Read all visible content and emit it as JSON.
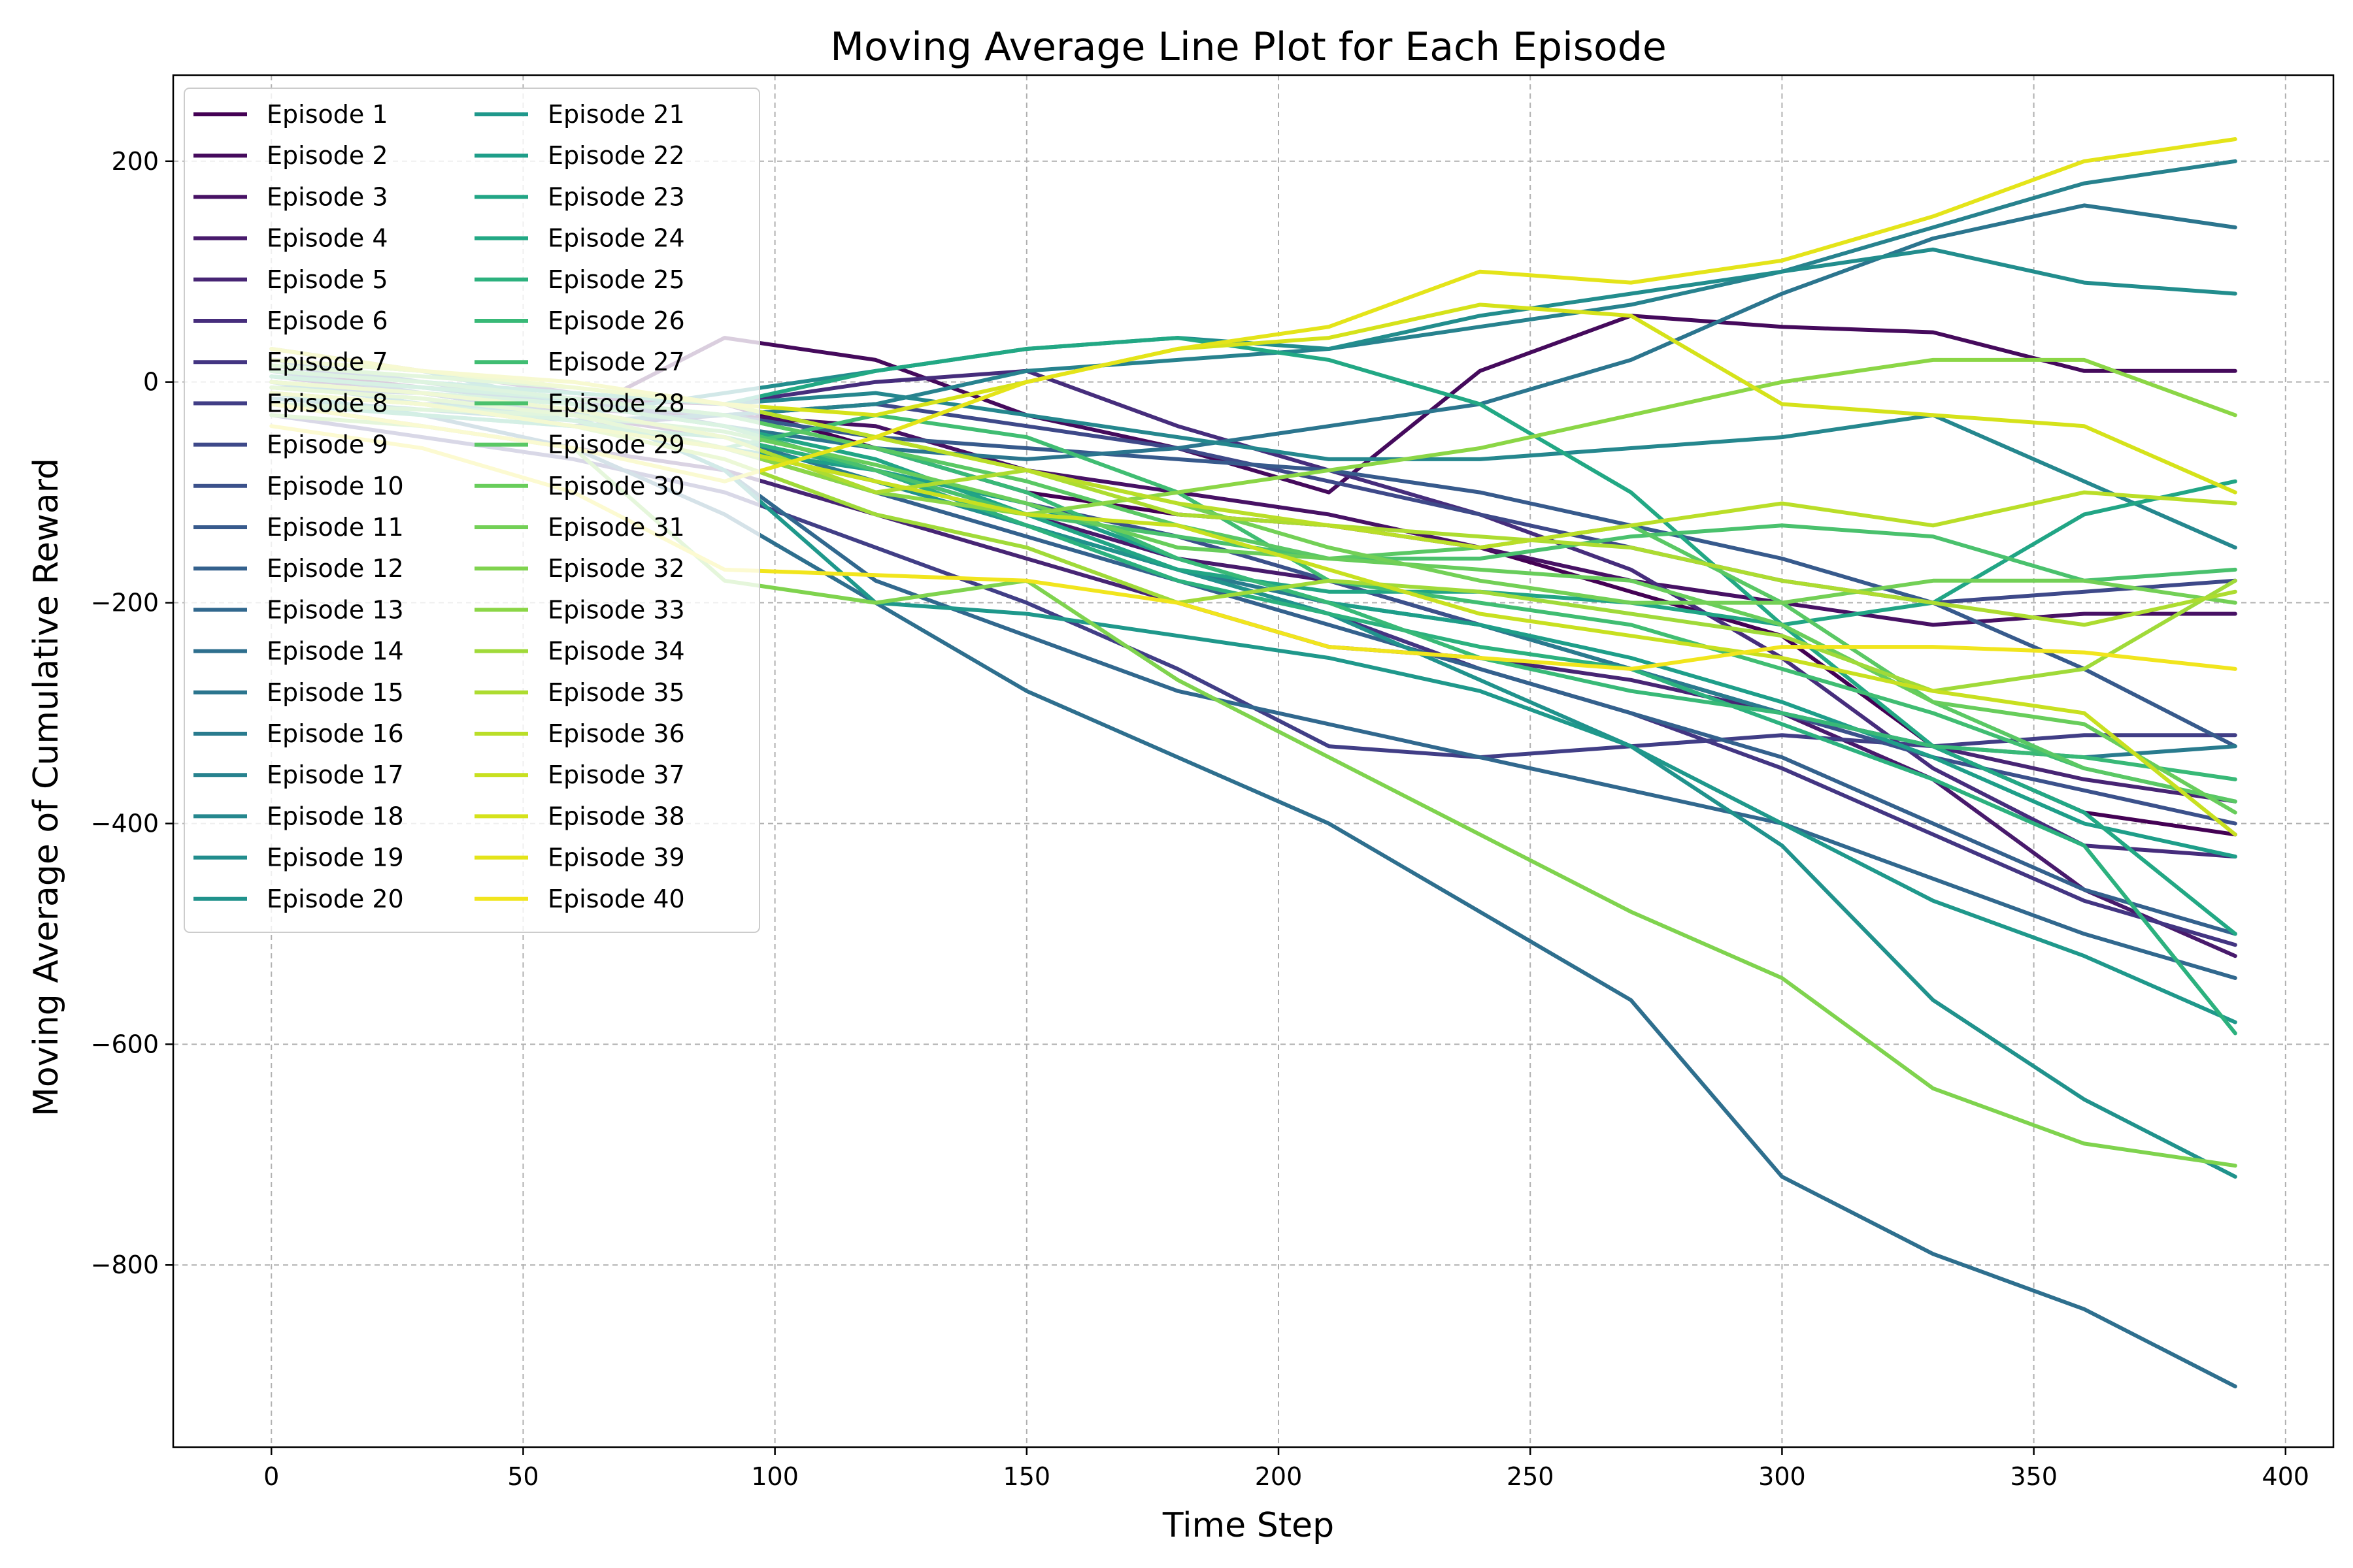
{
  "chart_data": {
    "type": "line",
    "title": "Moving Average Line Plot for Each Episode",
    "xlabel": "Time Step",
    "ylabel": "Moving Average of Cumulative Reward",
    "xlim": [
      -19.5,
      409.5
    ],
    "ylim": [
      -965,
      278
    ],
    "xticks": [
      0,
      50,
      100,
      150,
      200,
      250,
      300,
      350,
      400
    ],
    "yticks": [
      -800,
      -600,
      -400,
      -200,
      0,
      200
    ],
    "grid": true,
    "legend": "upper-left",
    "legend_columns": 2,
    "colormap": "viridis",
    "x": [
      0,
      30,
      60,
      90,
      120,
      150,
      180,
      210,
      240,
      270,
      300,
      330,
      360,
      390
    ],
    "series": [
      {
        "name": "Episode 1",
        "color": "#440154",
        "values": [
          10,
          -5,
          -15,
          -20,
          -60,
          -100,
          -120,
          -130,
          -150,
          -190,
          -230,
          -330,
          -390,
          -410
        ]
      },
      {
        "name": "Episode 2",
        "color": "#450a5c",
        "values": [
          0,
          -10,
          -30,
          40,
          20,
          -30,
          -60,
          -100,
          10,
          60,
          50,
          45,
          10,
          10
        ]
      },
      {
        "name": "Episode 3",
        "color": "#471164",
        "values": [
          -10,
          -20,
          -25,
          -30,
          -40,
          -80,
          -100,
          -120,
          -150,
          -180,
          -200,
          -220,
          -210,
          -210
        ]
      },
      {
        "name": "Episode 4",
        "color": "#481a6c",
        "values": [
          5,
          -10,
          -30,
          -50,
          -80,
          -120,
          -160,
          -180,
          -220,
          -260,
          -300,
          -360,
          -460,
          -520
        ]
      },
      {
        "name": "Episode 5",
        "color": "#472574",
        "values": [
          -20,
          -40,
          -60,
          -80,
          -120,
          -160,
          -200,
          -240,
          -250,
          -270,
          -300,
          -330,
          -360,
          -380
        ]
      },
      {
        "name": "Episode 6",
        "color": "#462d7c",
        "values": [
          20,
          10,
          -10,
          -20,
          0,
          10,
          -40,
          -80,
          -120,
          -170,
          -250,
          -350,
          -420,
          -430
        ]
      },
      {
        "name": "Episode 7",
        "color": "#433582",
        "values": [
          30,
          10,
          -20,
          -40,
          -80,
          -130,
          -170,
          -210,
          -260,
          -300,
          -350,
          -410,
          -470,
          -510
        ]
      },
      {
        "name": "Episode 8",
        "color": "#413e86",
        "values": [
          -30,
          -50,
          -70,
          -100,
          -150,
          -200,
          -260,
          -330,
          -340,
          -330,
          -320,
          -330,
          -320,
          -320
        ]
      },
      {
        "name": "Episode 9",
        "color": "#3e4989",
        "values": [
          0,
          -20,
          -40,
          -30,
          -20,
          -40,
          -60,
          -90,
          -120,
          -150,
          -180,
          -200,
          -190,
          -180
        ]
      },
      {
        "name": "Episode 10",
        "color": "#3b518b",
        "values": [
          15,
          0,
          -15,
          -40,
          -80,
          -110,
          -140,
          -180,
          -220,
          -260,
          -300,
          -340,
          -370,
          -400
        ]
      },
      {
        "name": "Episode 11",
        "color": "#375a8c",
        "values": [
          -5,
          -10,
          -20,
          -30,
          -50,
          -60,
          -70,
          -80,
          -100,
          -130,
          -160,
          -200,
          -260,
          -330
        ]
      },
      {
        "name": "Episode 12",
        "color": "#34618d",
        "values": [
          10,
          -10,
          -30,
          -60,
          -100,
          -140,
          -180,
          -220,
          -260,
          -300,
          -340,
          -400,
          -460,
          -500
        ]
      },
      {
        "name": "Episode 13",
        "color": "#31688e",
        "values": [
          20,
          0,
          -20,
          -80,
          -180,
          -230,
          -280,
          -310,
          -340,
          -370,
          -400,
          -450,
          -500,
          -540
        ]
      },
      {
        "name": "Episode 14",
        "color": "#2e6f8e",
        "values": [
          -10,
          -30,
          -60,
          -120,
          -200,
          -280,
          -340,
          -400,
          -480,
          -560,
          -720,
          -790,
          -840,
          -910
        ]
      },
      {
        "name": "Episode 15",
        "color": "#2b758e",
        "values": [
          5,
          -5,
          -20,
          -40,
          -60,
          -70,
          -60,
          -40,
          -20,
          20,
          80,
          130,
          160,
          140
        ]
      },
      {
        "name": "Episode 16",
        "color": "#297b8e",
        "values": [
          0,
          -10,
          -25,
          -50,
          -90,
          -130,
          -170,
          -200,
          -220,
          -260,
          -300,
          -330,
          -340,
          -330
        ]
      },
      {
        "name": "Episode 17",
        "color": "#27828e",
        "values": [
          -15,
          -25,
          -35,
          -30,
          -20,
          10,
          20,
          30,
          50,
          70,
          100,
          140,
          180,
          200
        ]
      },
      {
        "name": "Episode 18",
        "color": "#25878e",
        "values": [
          10,
          0,
          -10,
          -20,
          -10,
          -30,
          -50,
          -70,
          -70,
          -60,
          -50,
          -30,
          -90,
          -150
        ]
      },
      {
        "name": "Episode 19",
        "color": "#228d8d",
        "values": [
          0,
          -20,
          -30,
          -10,
          10,
          30,
          40,
          30,
          60,
          80,
          100,
          120,
          90,
          80
        ]
      },
      {
        "name": "Episode 20",
        "color": "#20928c",
        "values": [
          -5,
          -15,
          -35,
          -60,
          -90,
          -130,
          -170,
          -210,
          -270,
          -330,
          -420,
          -560,
          -650,
          -720
        ]
      },
      {
        "name": "Episode 21",
        "color": "#1f988b",
        "values": [
          20,
          10,
          -20,
          -80,
          -200,
          -210,
          -230,
          -250,
          -280,
          -330,
          -400,
          -470,
          -520,
          -580
        ]
      },
      {
        "name": "Episode 22",
        "color": "#1e9e89",
        "values": [
          -10,
          -30,
          -40,
          -60,
          -80,
          -110,
          -160,
          -200,
          -220,
          -250,
          -290,
          -340,
          -400,
          -430
        ]
      },
      {
        "name": "Episode 23",
        "color": "#21a585",
        "values": [
          0,
          -10,
          -20,
          -40,
          -70,
          -120,
          -170,
          -190,
          -190,
          -200,
          -220,
          -200,
          -120,
          -90
        ]
      },
      {
        "name": "Episode 24",
        "color": "#22a884",
        "values": [
          10,
          0,
          -10,
          -20,
          10,
          30,
          40,
          20,
          -20,
          -100,
          -220,
          -330,
          -390,
          -500
        ]
      },
      {
        "name": "Episode 25",
        "color": "#2cb17e",
        "values": [
          -20,
          -30,
          -40,
          -50,
          -80,
          -130,
          -180,
          -210,
          -240,
          -260,
          -310,
          -360,
          -420,
          -590
        ]
      },
      {
        "name": "Episode 26",
        "color": "#38b977",
        "values": [
          5,
          -5,
          -15,
          -30,
          -60,
          -100,
          -160,
          -200,
          -250,
          -280,
          -300,
          -330,
          -340,
          -360
        ]
      },
      {
        "name": "Episode 27",
        "color": "#40bd72",
        "values": [
          -10,
          -20,
          -35,
          -60,
          -30,
          -50,
          -100,
          -180,
          -200,
          -220,
          -260,
          -300,
          -350,
          -380
        ]
      },
      {
        "name": "Episode 28",
        "color": "#4ac16d",
        "values": [
          0,
          -10,
          -20,
          -40,
          -80,
          -120,
          -140,
          -160,
          -160,
          -140,
          -130,
          -140,
          -180,
          -170
        ]
      },
      {
        "name": "Episode 29",
        "color": "#5ac864",
        "values": [
          10,
          0,
          -15,
          -30,
          -60,
          -90,
          -130,
          -160,
          -150,
          -130,
          -200,
          -290,
          -350,
          -380
        ]
      },
      {
        "name": "Episode 30",
        "color": "#68cd5b",
        "values": [
          -20,
          -25,
          -30,
          -45,
          -75,
          -110,
          -150,
          -160,
          -170,
          -180,
          -220,
          -290,
          -310,
          -390
        ]
      },
      {
        "name": "Episode 31",
        "color": "#73d056",
        "values": [
          15,
          5,
          -5,
          -20,
          -50,
          -80,
          -110,
          -150,
          -180,
          -200,
          -200,
          -180,
          -180,
          -200
        ]
      },
      {
        "name": "Episode 32",
        "color": "#7fd34e",
        "values": [
          -30,
          -40,
          -60,
          -180,
          -200,
          -180,
          -270,
          -340,
          -410,
          -480,
          -540,
          -640,
          -690,
          -710
        ]
      },
      {
        "name": "Episode 33",
        "color": "#8bd646",
        "values": [
          -5,
          -15,
          -30,
          -60,
          -100,
          -120,
          -100,
          -80,
          -60,
          -30,
          0,
          20,
          20,
          -30
        ]
      },
      {
        "name": "Episode 34",
        "color": "#a0da39",
        "values": [
          -10,
          -20,
          -40,
          -70,
          -120,
          -150,
          -200,
          -180,
          -190,
          -210,
          -230,
          -280,
          -260,
          -180
        ]
      },
      {
        "name": "Episode 35",
        "color": "#addc30",
        "values": [
          0,
          -10,
          -25,
          -50,
          -100,
          -80,
          -120,
          -130,
          -140,
          -150,
          -180,
          -200,
          -220,
          -190
        ]
      },
      {
        "name": "Episode 36",
        "color": "#bade28",
        "values": [
          20,
          10,
          -5,
          -20,
          -50,
          -80,
          -110,
          -130,
          -150,
          -130,
          -110,
          -130,
          -100,
          -110
        ]
      },
      {
        "name": "Episode 37",
        "color": "#c8e020",
        "values": [
          -10,
          -20,
          -40,
          -60,
          -90,
          -120,
          -130,
          -170,
          -210,
          -230,
          -250,
          -280,
          -300,
          -410
        ]
      },
      {
        "name": "Episode 38",
        "color": "#d5e21a",
        "values": [
          30,
          10,
          0,
          -20,
          -30,
          0,
          30,
          40,
          70,
          60,
          -20,
          -30,
          -40,
          -100
        ]
      },
      {
        "name": "Episode 39",
        "color": "#e4e419",
        "values": [
          -20,
          -40,
          -60,
          -90,
          -50,
          0,
          30,
          50,
          100,
          90,
          110,
          150,
          200,
          220
        ]
      },
      {
        "name": "Episode 40",
        "color": "#f1e51d",
        "values": [
          -40,
          -60,
          -100,
          -170,
          -175,
          -180,
          -200,
          -240,
          -250,
          -260,
          -240,
          -240,
          -245,
          -260
        ]
      }
    ]
  }
}
